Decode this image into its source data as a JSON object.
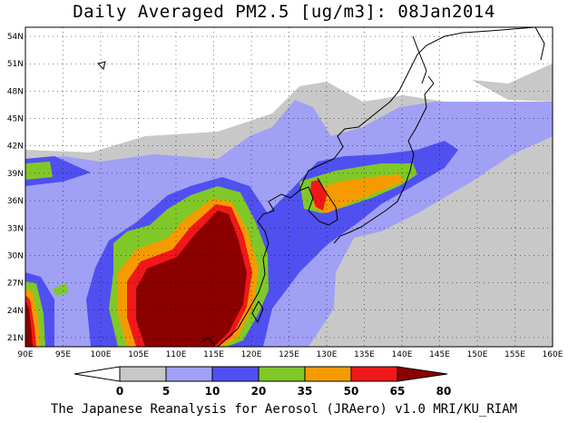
{
  "title": "Daily Averaged PM2.5 [ug/m3]: 08Jan2014",
  "credit": "The Japanese Reanalysis for Aerosol (JRAero) v1.0 MRI/KU_RIAM",
  "map": {
    "lon_range": [
      90,
      160
    ],
    "lat_range": [
      20,
      55
    ],
    "lon_ticks": [
      "90E",
      "95E",
      "100E",
      "105E",
      "110E",
      "115E",
      "120E",
      "125E",
      "130E",
      "135E",
      "140E",
      "145E",
      "150E",
      "155E",
      "160E"
    ],
    "lat_ticks": [
      "21N",
      "24N",
      "27N",
      "30N",
      "33N",
      "36N",
      "39N",
      "42N",
      "45N",
      "48N",
      "51N",
      "54N"
    ],
    "gridlines": "dotted"
  },
  "colorbar": {
    "levels": [
      "0",
      "5",
      "10",
      "20",
      "35",
      "50",
      "65",
      "80"
    ],
    "colors": [
      "#ffffff",
      "#c8c8c8",
      "#a0a0f5",
      "#5050f0",
      "#80c828",
      "#f59b00",
      "#f01818",
      "#8c0000"
    ],
    "extend": "both"
  }
}
